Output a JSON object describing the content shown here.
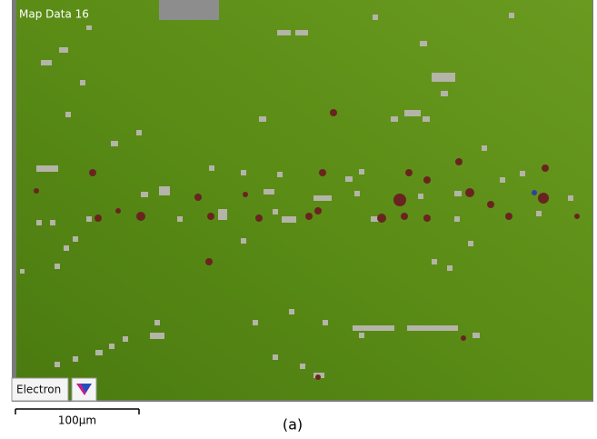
{
  "header": {
    "title": "Map Data 16"
  },
  "overlay": {
    "label": "Electron"
  },
  "scale_bar": {
    "label": "100µm"
  },
  "caption": "(a)"
}
